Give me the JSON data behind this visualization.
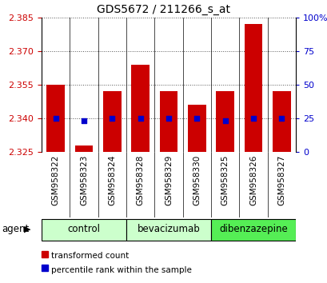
{
  "title": "GDS5672 / 211266_s_at",
  "samples": [
    "GSM958322",
    "GSM958323",
    "GSM958324",
    "GSM958328",
    "GSM958329",
    "GSM958330",
    "GSM958325",
    "GSM958326",
    "GSM958327"
  ],
  "bar_values": [
    2.355,
    2.328,
    2.352,
    2.364,
    2.352,
    2.346,
    2.352,
    2.382,
    2.352
  ],
  "dot_values": [
    2.34,
    2.339,
    2.34,
    2.34,
    2.34,
    2.34,
    2.339,
    2.34,
    2.34
  ],
  "bar_bottom": 2.325,
  "ylim": [
    2.325,
    2.385
  ],
  "yticks": [
    2.325,
    2.34,
    2.355,
    2.37,
    2.385
  ],
  "y2ticks": [
    0,
    25,
    50,
    75,
    100
  ],
  "y2labels": [
    "0",
    "25",
    "50",
    "75",
    "100%"
  ],
  "bar_color": "#cc0000",
  "dot_color": "#0000cc",
  "groups": [
    {
      "label": "control",
      "indices": [
        0,
        1,
        2
      ],
      "color": "#ccffcc"
    },
    {
      "label": "bevacizumab",
      "indices": [
        3,
        4,
        5
      ],
      "color": "#ccffcc"
    },
    {
      "label": "dibenzazepine",
      "indices": [
        6,
        7,
        8
      ],
      "color": "#55ee55"
    }
  ],
  "agent_label": "agent",
  "legend_bar": "transformed count",
  "legend_dot": "percentile rank within the sample",
  "bg_color": "#ffffff",
  "plot_bg": "#ffffff",
  "grid_color": "#555555",
  "bar_width": 0.65,
  "tick_bg": "#dddddd"
}
